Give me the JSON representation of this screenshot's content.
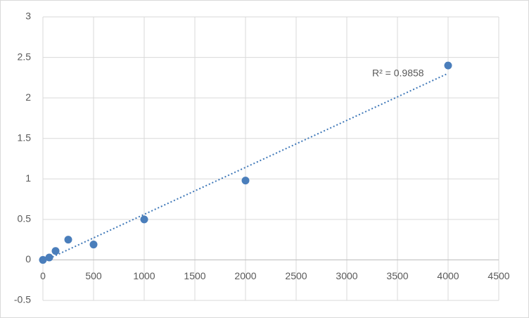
{
  "chart_data": {
    "type": "scatter",
    "x": [
      0,
      62.5,
      125,
      250,
      500,
      1000,
      2000,
      4000
    ],
    "series": [
      {
        "color": "#4a7ebb",
        "values": [
          0,
          0.03,
          0.11,
          0.25,
          0.19,
          0.5,
          0.98,
          2.4
        ]
      }
    ],
    "xlim": [
      0,
      4500
    ],
    "xticks": [
      0,
      500,
      1000,
      1500,
      2000,
      2500,
      3000,
      3500,
      4000,
      4500
    ],
    "ylim": [
      -0.5,
      3
    ],
    "yticks": [
      -0.5,
      0,
      0.5,
      1,
      1.5,
      2,
      2.5,
      3
    ],
    "grid": true,
    "trendline": "linear",
    "trendline_color": "#3f78b8",
    "annotation": "R² = 0.9858"
  }
}
